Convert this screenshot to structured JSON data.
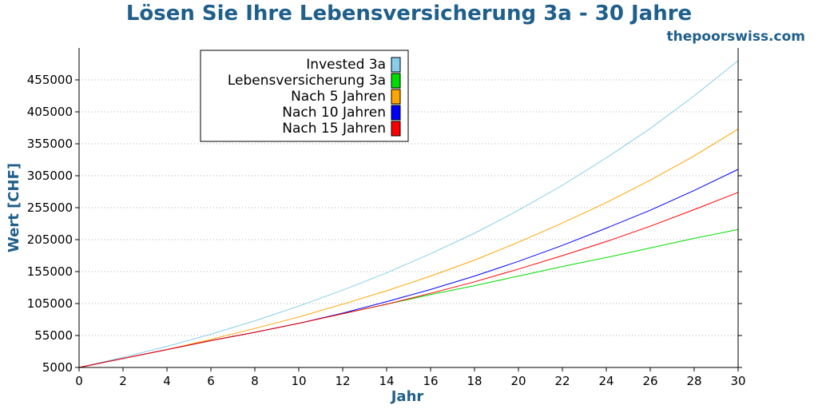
{
  "chart_data": {
    "type": "line",
    "title": "Lösen Sie Ihre Lebensversicherung 3a - 30 Jahre",
    "subtitle": "thepoorswiss.com",
    "xlabel": "Jahr",
    "ylabel": "Wert [CHF]",
    "xlim": [
      0,
      30
    ],
    "ylim": [
      5000,
      505000
    ],
    "x_ticks": [
      0,
      2,
      4,
      6,
      8,
      10,
      12,
      14,
      16,
      18,
      20,
      22,
      24,
      26,
      28,
      30
    ],
    "y_ticks": [
      5000,
      55000,
      105000,
      155000,
      205000,
      255000,
      305000,
      355000,
      405000,
      455000
    ],
    "grid": "horizontal dotted",
    "legend_placement": "top-left",
    "x": [
      0,
      2,
      4,
      6,
      8,
      10,
      12,
      14,
      16,
      18,
      20,
      22,
      24,
      26,
      28,
      30
    ],
    "series": [
      {
        "name": "Invested 3a",
        "color": "#87ceeb",
        "values": [
          5000,
          21000,
          38000,
          57000,
          78000,
          101000,
          126000,
          153000,
          183000,
          215000,
          251000,
          290000,
          333000,
          379000,
          430000,
          485000
        ]
      },
      {
        "name": "Lebensversicherung 3a",
        "color": "#00dd00",
        "values": [
          5000,
          19000,
          33000,
          47000,
          60000,
          74000,
          89000,
          104000,
          119000,
          133000,
          148000,
          163000,
          177000,
          192000,
          207000,
          221000
        ]
      },
      {
        "name": "Nach 5 Jahren",
        "color": "#ffa500",
        "values": [
          5000,
          19000,
          33000,
          49000,
          66000,
          84000,
          104000,
          125000,
          148000,
          173000,
          201000,
          231000,
          263000,
          298000,
          336000,
          378000
        ]
      },
      {
        "name": "Nach 10 Jahren",
        "color": "#0000ff",
        "values": [
          5000,
          19000,
          33000,
          47000,
          60000,
          74000,
          90000,
          108000,
          127000,
          148000,
          171000,
          196000,
          223000,
          251000,
          282000,
          315000
        ]
      },
      {
        "name": "Nach 15 Jahren",
        "color": "#ff0000",
        "values": [
          5000,
          19000,
          33000,
          47000,
          60000,
          74000,
          89000,
          104000,
          121000,
          139000,
          159000,
          180000,
          202000,
          226000,
          252000,
          279000
        ]
      }
    ]
  },
  "colors": {
    "title": "#1f5f8b",
    "axis_label": "#1f5f8b",
    "grid": "#b0b0b0",
    "axis": "#000000"
  }
}
